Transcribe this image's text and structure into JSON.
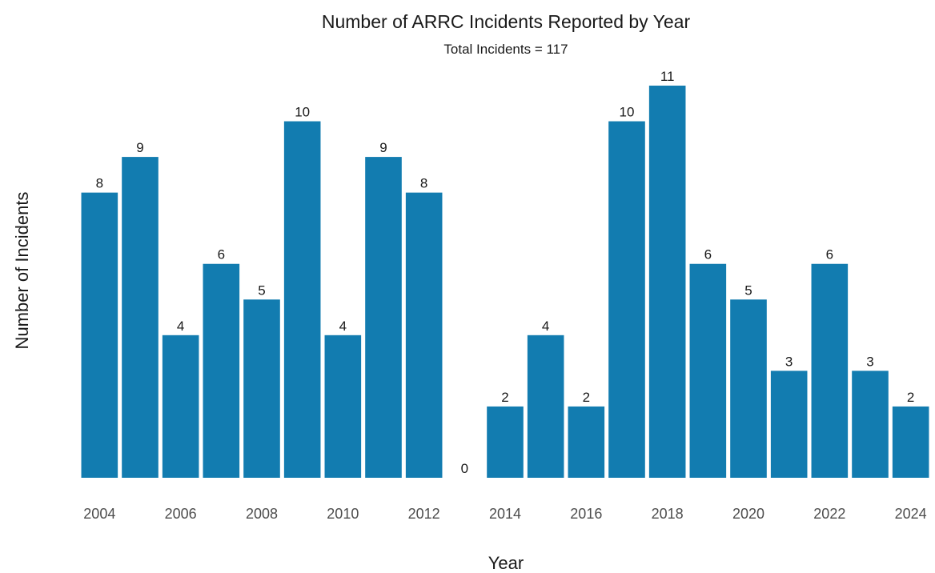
{
  "chart_data": {
    "type": "bar",
    "title": "Number of ARRC Incidents Reported by Year",
    "subtitle": "Total Incidents = 117",
    "xlabel": "Year",
    "ylabel": "Number of Incidents",
    "categories": [
      2004,
      2005,
      2006,
      2007,
      2008,
      2009,
      2010,
      2011,
      2012,
      2013,
      2014,
      2015,
      2016,
      2017,
      2018,
      2019,
      2020,
      2021,
      2022,
      2023,
      2024
    ],
    "values": [
      8,
      9,
      4,
      6,
      5,
      10,
      4,
      9,
      8,
      0,
      2,
      4,
      2,
      10,
      11,
      6,
      5,
      3,
      6,
      3,
      2
    ],
    "x_ticks": [
      "2004",
      "2006",
      "2008",
      "2010",
      "2012",
      "2014",
      "2016",
      "2018",
      "2020",
      "2022",
      "2024"
    ],
    "ylim": [
      0,
      11
    ],
    "y_axis_labels_shown": false,
    "grid": false,
    "bar_color": "#127cb0",
    "data_labels": true
  }
}
